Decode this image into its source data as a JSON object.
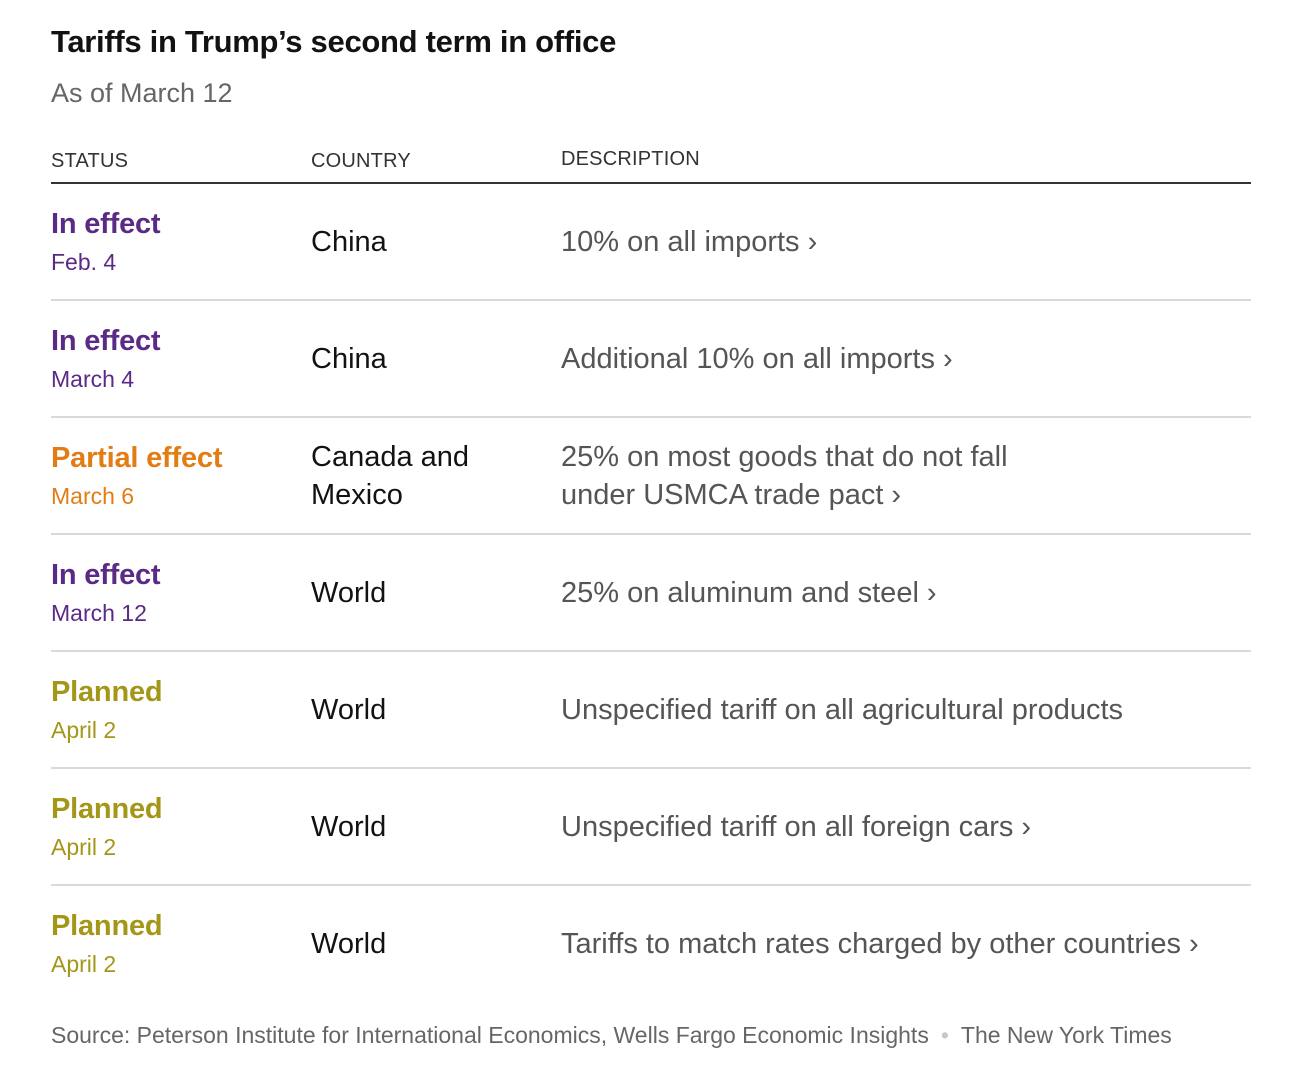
{
  "header": {
    "title": "Tariffs in Trump’s second term in office",
    "subtitle": "As of March 12"
  },
  "columns": {
    "status": "STATUS",
    "country": "COUNTRY",
    "description": "DESCRIPTION"
  },
  "colors": {
    "in_effect": "#5b2a86",
    "partial_effect": "#e27c14",
    "planned": "#a49617"
  },
  "rows": [
    {
      "status": "In effect",
      "date": "Feb. 4",
      "country": "China",
      "description": "10% on all imports",
      "has_link": true
    },
    {
      "status": "In effect",
      "date": "March 4",
      "country": "China",
      "description": "Additional 10% on all imports",
      "has_link": true
    },
    {
      "status": "Partial effect",
      "date": "March 6",
      "country": "Canada and Mexico",
      "description": "25% on most goods that do not fall under USMCA trade pact",
      "has_link": true
    },
    {
      "status": "In effect",
      "date": "March 12",
      "country": "World",
      "description": "25% on aluminum and steel",
      "has_link": true
    },
    {
      "status": "Planned",
      "date": "April 2",
      "country": "World",
      "description": "Unspecified tariff on all agricultural products",
      "has_link": false
    },
    {
      "status": "Planned",
      "date": "April 2",
      "country": "World",
      "description": "Unspecified tariff on all foreign cars",
      "has_link": true
    },
    {
      "status": "Planned",
      "date": "April 2",
      "country": "World",
      "description": "Tariffs to match rates charged by other countries",
      "has_link": true
    }
  ],
  "link_icon": "›",
  "footer": {
    "source": "Source: Peterson Institute for International Economics, Wells Fargo Economic Insights",
    "separator": "•",
    "credit": "The New York Times"
  }
}
